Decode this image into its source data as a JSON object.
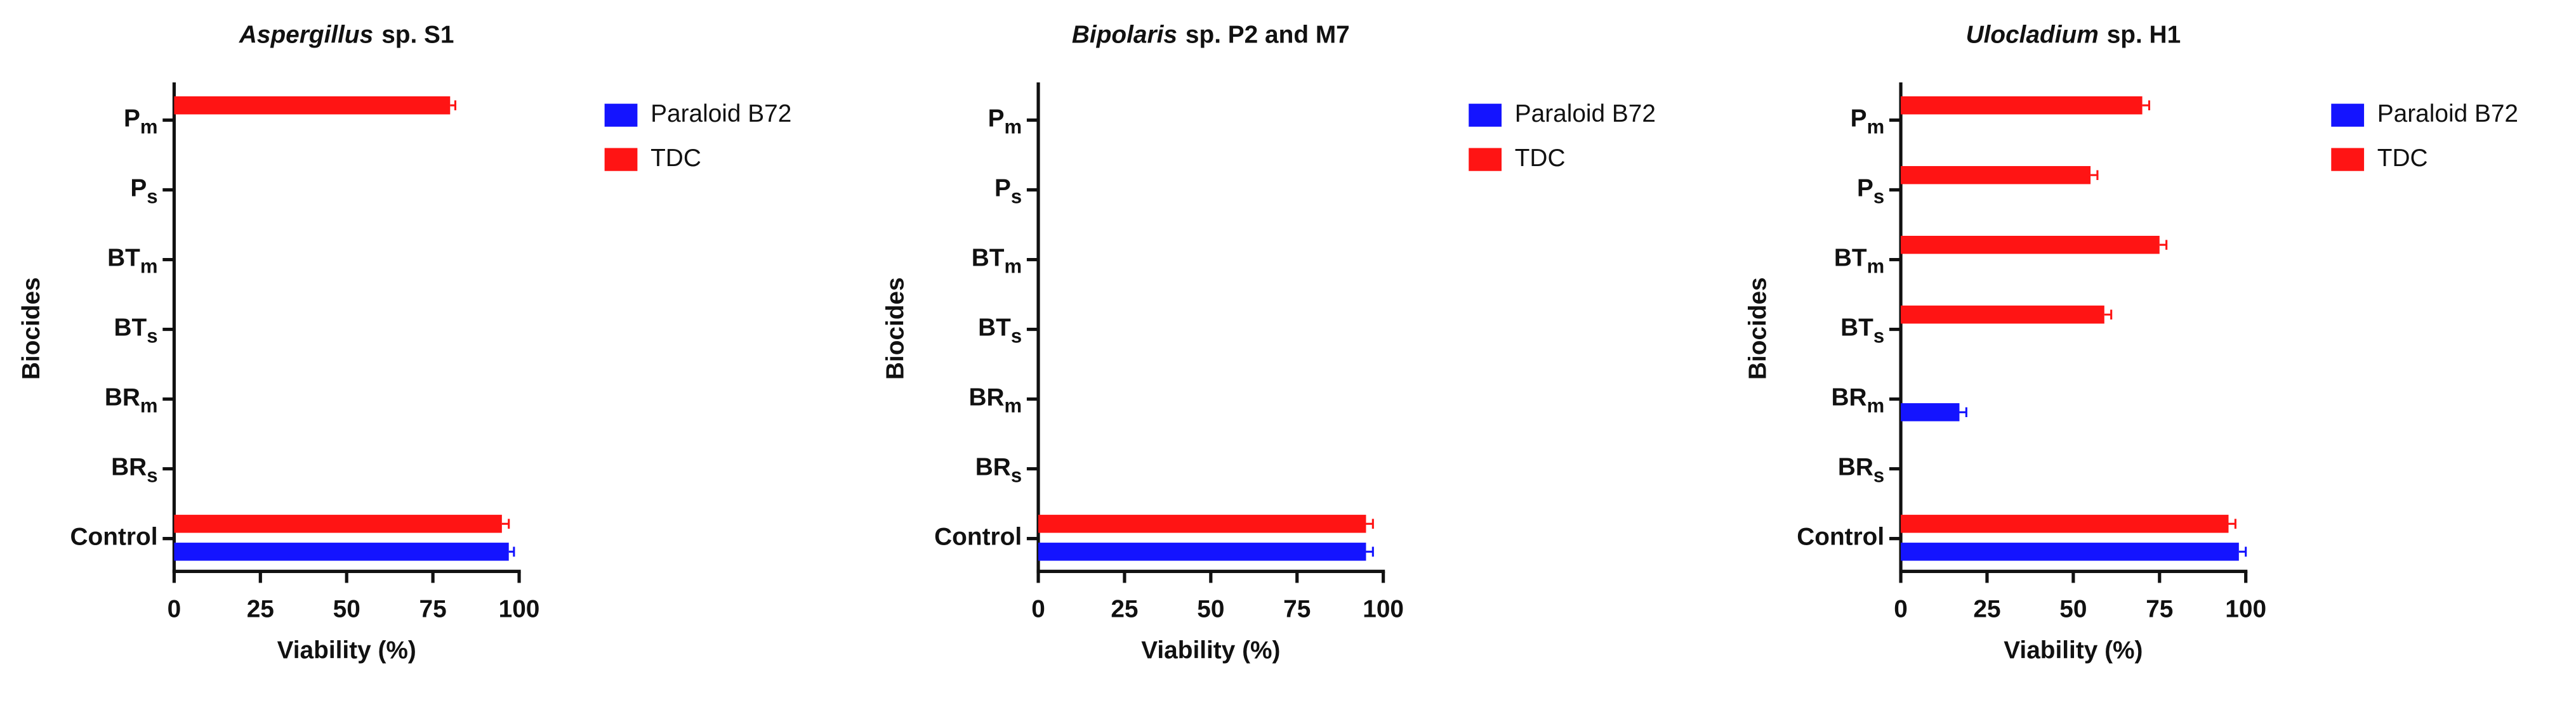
{
  "chart_data": [
    {
      "type": "bar",
      "orientation": "horizontal",
      "title": {
        "genus": "Aspergillus",
        "rest": "sp. S1"
      },
      "x_label": "Viability (%)",
      "y_label": "Biocides",
      "categories": [
        {
          "label": "P",
          "sub": "m"
        },
        {
          "label": "P",
          "sub": "s"
        },
        {
          "label": "BT",
          "sub": "m"
        },
        {
          "label": "BT",
          "sub": "s"
        },
        {
          "label": "BR",
          "sub": "m"
        },
        {
          "label": "BR",
          "sub": "s"
        },
        {
          "label": "Control"
        }
      ],
      "series": [
        {
          "name": "Paraloid B72",
          "color": "#1414ff",
          "values": [
            null,
            null,
            null,
            null,
            null,
            null,
            97
          ],
          "errors": [
            null,
            null,
            null,
            null,
            null,
            null,
            1.5
          ]
        },
        {
          "name": "TDC",
          "color": "#ff1414",
          "values": [
            80,
            null,
            null,
            null,
            null,
            null,
            95
          ],
          "errors": [
            1.5,
            null,
            null,
            null,
            null,
            null,
            2
          ]
        }
      ],
      "xlim": [
        0,
        100
      ],
      "xticks": [
        0,
        25,
        50,
        75,
        100
      ],
      "legend": "right"
    },
    {
      "type": "bar",
      "orientation": "horizontal",
      "title": {
        "genus": "Bipolaris",
        "rest": "sp. P2 and M7"
      },
      "x_label": "Viability (%)",
      "y_label": "Biocides",
      "categories": [
        {
          "label": "P",
          "sub": "m"
        },
        {
          "label": "P",
          "sub": "s"
        },
        {
          "label": "BT",
          "sub": "m"
        },
        {
          "label": "BT",
          "sub": "s"
        },
        {
          "label": "BR",
          "sub": "m"
        },
        {
          "label": "BR",
          "sub": "s"
        },
        {
          "label": "Control"
        }
      ],
      "series": [
        {
          "name": "Paraloid B72",
          "color": "#1414ff",
          "values": [
            null,
            null,
            null,
            null,
            null,
            null,
            95
          ],
          "errors": [
            null,
            null,
            null,
            null,
            null,
            null,
            2
          ]
        },
        {
          "name": "TDC",
          "color": "#ff1414",
          "values": [
            null,
            null,
            null,
            null,
            null,
            null,
            95
          ],
          "errors": [
            null,
            null,
            null,
            null,
            null,
            null,
            2
          ]
        }
      ],
      "xlim": [
        0,
        100
      ],
      "xticks": [
        0,
        25,
        50,
        75,
        100
      ],
      "legend": "right"
    },
    {
      "type": "bar",
      "orientation": "horizontal",
      "title": {
        "genus": "Ulocladium",
        "rest": "sp. H1"
      },
      "x_label": "Viability (%)",
      "y_label": "Biocides",
      "categories": [
        {
          "label": "P",
          "sub": "m"
        },
        {
          "label": "P",
          "sub": "s"
        },
        {
          "label": "BT",
          "sub": "m"
        },
        {
          "label": "BT",
          "sub": "s"
        },
        {
          "label": "BR",
          "sub": "m"
        },
        {
          "label": "BR",
          "sub": "s"
        },
        {
          "label": "Control"
        }
      ],
      "series": [
        {
          "name": "Paraloid B72",
          "color": "#1414ff",
          "values": [
            null,
            null,
            null,
            null,
            17,
            null,
            98
          ],
          "errors": [
            null,
            null,
            null,
            null,
            2,
            null,
            2
          ]
        },
        {
          "name": "TDC",
          "color": "#ff1414",
          "values": [
            70,
            55,
            75,
            59,
            null,
            null,
            95
          ],
          "errors": [
            2,
            2,
            2,
            2,
            null,
            null,
            2
          ]
        }
      ],
      "xlim": [
        0,
        100
      ],
      "xticks": [
        0,
        25,
        50,
        75,
        100
      ],
      "legend": "right"
    }
  ]
}
